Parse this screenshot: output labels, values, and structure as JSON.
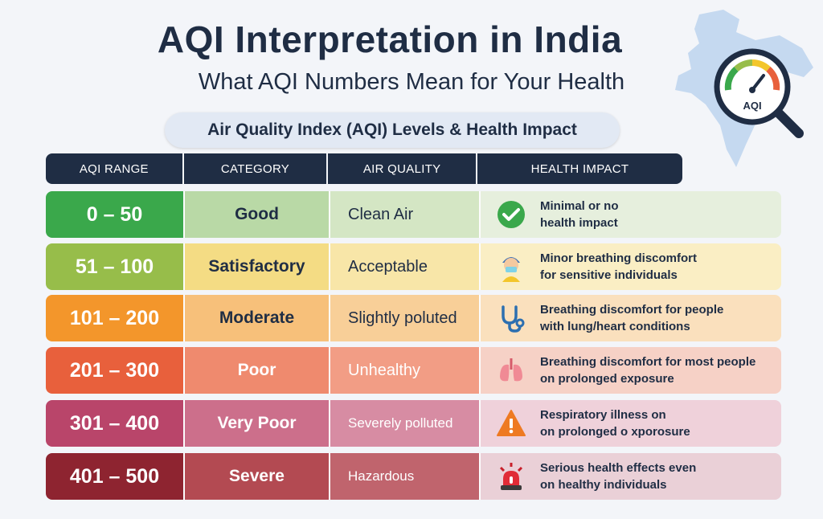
{
  "header": {
    "title": "AQI Interpretation in India",
    "subtitle": "What AQI Numbers Mean for Your Health",
    "badge_label": "AQI",
    "section_label": "Air Quality Index (AQI) Levels & Health Impact"
  },
  "table": {
    "columns": [
      "AQI RANGE",
      "CATEGORY",
      "AIR QUALITY",
      "HEALTH IMPACT"
    ],
    "rows": [
      {
        "range": "0 – 50",
        "category": "Good",
        "air_quality": "Clean Air",
        "health_impact": "Minimal or no\nhealth impact",
        "icon": "check-circle-icon",
        "colors": {
          "range": "#3aa84b",
          "cat": "#b9d9a6",
          "aq": "#d4e6c4",
          "hi": "#e6efdd",
          "text": "#1f2d44",
          "aq_text": "#1f2d44"
        }
      },
      {
        "range": "51 – 100",
        "category": "Satisfactory",
        "air_quality": "Acceptable",
        "health_impact": "Minor breathing discomfort\nfor sensitive individuals",
        "icon": "masked-person-icon",
        "colors": {
          "range": "#97bd4a",
          "cat": "#f4dc84",
          "aq": "#f8e6a8",
          "hi": "#faeec4",
          "text": "#1f2d44",
          "aq_text": "#1f2d44"
        }
      },
      {
        "range": "101 – 200",
        "category": "Moderate",
        "air_quality": "Slightly poluted",
        "health_impact": "Breathing discomfort for people\nwith lung/heart conditions",
        "icon": "stethoscope-icon",
        "colors": {
          "range": "#f3962b",
          "cat": "#f7c07a",
          "aq": "#f8cf98",
          "hi": "#fae0bd",
          "text": "#1f2d44",
          "aq_text": "#1f2d44"
        }
      },
      {
        "range": "201 – 300",
        "category": "Poor",
        "air_quality": "Unhealthy",
        "health_impact": "Breathing discomfort for most people\non prolonged exposure",
        "icon": "lungs-icon",
        "colors": {
          "range": "#e8603c",
          "cat": "#ef8a6e",
          "aq": "#f29d85",
          "hi": "#f6d1c6",
          "text": "#ffffff",
          "aq_text": "#ffffff"
        }
      },
      {
        "range": "301 – 400",
        "category": "Very Poor",
        "air_quality": "Severely polluted",
        "health_impact": "Respiratory illness on\non prolonged o xporosure",
        "icon": "warning-icon",
        "colors": {
          "range": "#b9456a",
          "cat": "#cc6f8b",
          "aq": "#d78ca3",
          "hi": "#efd1da",
          "text": "#ffffff",
          "aq_text": "#ffffff"
        }
      },
      {
        "range": "401 – 500",
        "category": "Severe",
        "air_quality": "Hazardous",
        "health_impact": "Serious health effects even\non healthy individuals",
        "icon": "siren-icon",
        "colors": {
          "range": "#8e2430",
          "cat": "#b34a52",
          "aq": "#c0646d",
          "hi": "#ead0d7",
          "text": "#ffffff",
          "aq_text": "#ffffff"
        }
      }
    ]
  }
}
